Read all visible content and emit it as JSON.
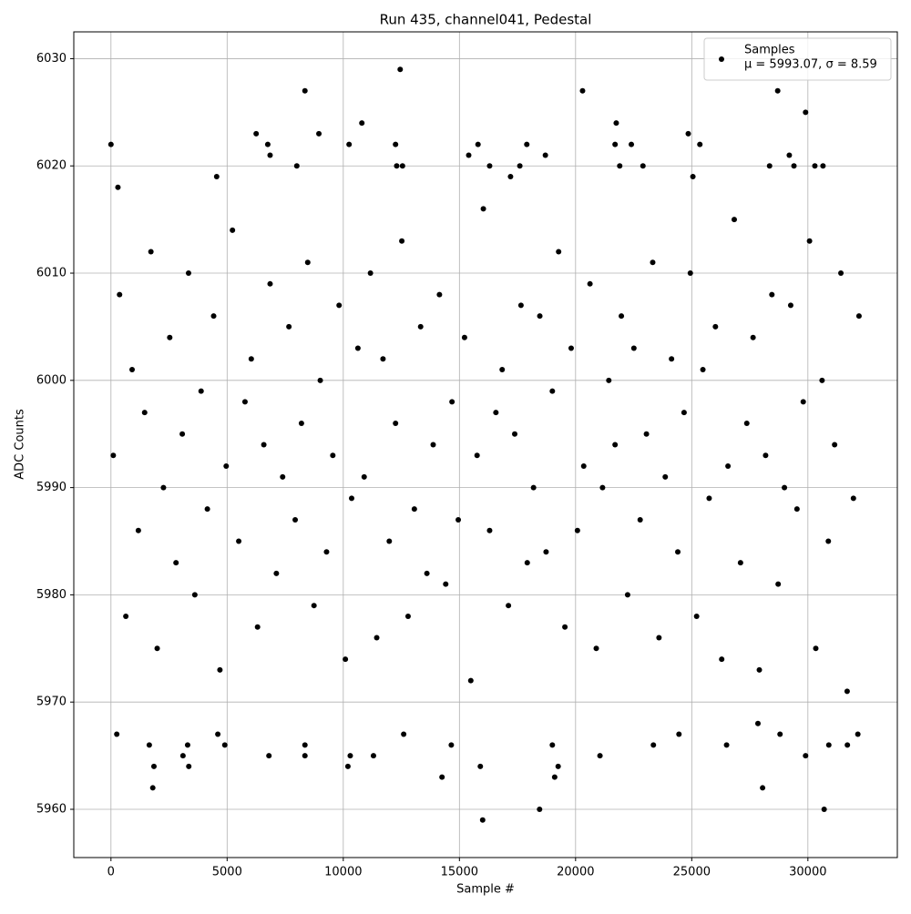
{
  "chart_data": {
    "type": "scatter",
    "title": "Run 435, channel041, Pedestal",
    "xlabel": "Sample #",
    "ylabel": "ADC Counts",
    "xlim": [
      -1600,
      33850
    ],
    "ylim": [
      5955.5,
      6032.5
    ],
    "xticks": [
      0,
      5000,
      10000,
      15000,
      20000,
      25000,
      30000
    ],
    "yticks": [
      5960,
      5970,
      5980,
      5990,
      6000,
      6010,
      6020,
      6030
    ],
    "grid": true,
    "legend_loc": "upper right",
    "legend_note": "μ = 5993.07, σ = 8.59",
    "series": [
      {
        "name": "Samples",
        "color": "#000000",
        "x": [
          0,
          250,
          300,
          1650,
          1800,
          1850,
          3100,
          3300,
          3350,
          4600,
          4550,
          4900,
          6250,
          6750,
          6850,
          6800,
          8000,
          8350,
          8350,
          8350,
          8950,
          10200,
          10250,
          10300,
          10800,
          11300,
          12250,
          12300,
          12450,
          12550,
          12600,
          14250,
          14650,
          15400,
          15800,
          15900,
          16000,
          16300,
          17200,
          17600,
          17900,
          18450,
          18700,
          19000,
          19100,
          19250,
          20300,
          21050,
          21700,
          21750,
          21900,
          22400,
          22900,
          23350,
          24450,
          24850,
          25050,
          25350,
          26500,
          27850,
          28050,
          28350,
          28700,
          28800,
          29200,
          29400,
          29900,
          29900,
          30300,
          30650,
          30700,
          30900,
          31700,
          32150,
          100,
          370,
          640,
          910,
          1180,
          1450,
          1720,
          1990,
          2260,
          2530,
          2800,
          3070,
          3340,
          3610,
          3880,
          4150,
          4420,
          4690,
          4960,
          5230,
          5500,
          5770,
          6040,
          6310,
          6580,
          6850,
          7120,
          7390,
          7660,
          7930,
          8200,
          8470,
          8740,
          9010,
          9280,
          9550,
          9820,
          10090,
          10360,
          10630,
          10900,
          11170,
          11440,
          11710,
          11980,
          12250,
          12520,
          12790,
          13060,
          13330,
          13600,
          13870,
          14140,
          14410,
          14680,
          14950,
          15220,
          15490,
          15760,
          16030,
          16300,
          16570,
          16840,
          17110,
          17380,
          17650,
          17920,
          18190,
          18460,
          18730,
          19000,
          19270,
          19540,
          19810,
          20080,
          20350,
          20620,
          20890,
          21160,
          21430,
          21700,
          21970,
          22240,
          22510,
          22780,
          23050,
          23320,
          23590,
          23860,
          24130,
          24400,
          24670,
          24940,
          25210,
          25480,
          25750,
          26020,
          26290,
          26560,
          26830,
          27100,
          27370,
          27640,
          27910,
          28180,
          28450,
          28720,
          28990,
          29260,
          29530,
          29800,
          30070,
          30340,
          30610,
          30880,
          31150,
          31420,
          31690,
          31960,
          32200
        ],
        "y": [
          6022,
          5967,
          6018,
          5966,
          5962,
          5964,
          5965,
          5966,
          5964,
          5967,
          6019,
          5966,
          6023,
          6022,
          6021,
          5965,
          6020,
          6027,
          5966,
          5965,
          6023,
          5964,
          6022,
          5965,
          6024,
          5965,
          6022,
          6020,
          6029,
          6020,
          5967,
          5963,
          5966,
          6021,
          6022,
          5964,
          5959,
          6020,
          6019,
          6020,
          6022,
          5960,
          6021,
          5966,
          5963,
          5964,
          6027,
          5965,
          6022,
          6024,
          6020,
          6022,
          6020,
          5966,
          5967,
          6023,
          6019,
          6022,
          5966,
          5968,
          5962,
          6020,
          6027,
          5967,
          6021,
          6020,
          6025,
          5965,
          6020,
          6020,
          5960,
          5966,
          5966,
          5967,
          5993,
          6008,
          5978,
          6001,
          5986,
          5997,
          6012,
          5975,
          5990,
          6004,
          5983,
          5995,
          6010,
          5980,
          5999,
          5988,
          6006,
          5973,
          5992,
          6014,
          5985,
          5998,
          6002,
          5977,
          5994,
          6009,
          5982,
          5991,
          6005,
          5987,
          5996,
          6011,
          5979,
          6000,
          5984,
          5993,
          6007,
          5974,
          5989,
          6003,
          5991,
          6010,
          5976,
          6002,
          5985,
          5996,
          6013,
          5978,
          5988,
          6005,
          5982,
          5994,
          6008,
          5981,
          5998,
          5987,
          6004,
          5972,
          5993,
          6016,
          5986,
          5997,
          6001,
          5979,
          5995,
          6007,
          5983,
          5990,
          6006,
          5984,
          5999,
          6012,
          5977,
          6003,
          5986,
          5992,
          6009,
          5975,
          5990,
          6000,
          5994,
          6006,
          5980,
          6003,
          5987,
          5995,
          6011,
          5976,
          5991,
          6002,
          5984,
          5997,
          6010,
          5978,
          6001,
          5989,
          6005,
          5974,
          5992,
          6015,
          5983,
          5996,
          6004,
          5973,
          5993,
          6008,
          5981,
          5990,
          6007,
          5988,
          5998,
          6013,
          5975,
          6000,
          5985,
          5994,
          6010,
          5971,
          5989,
          6006
        ]
      }
    ]
  }
}
